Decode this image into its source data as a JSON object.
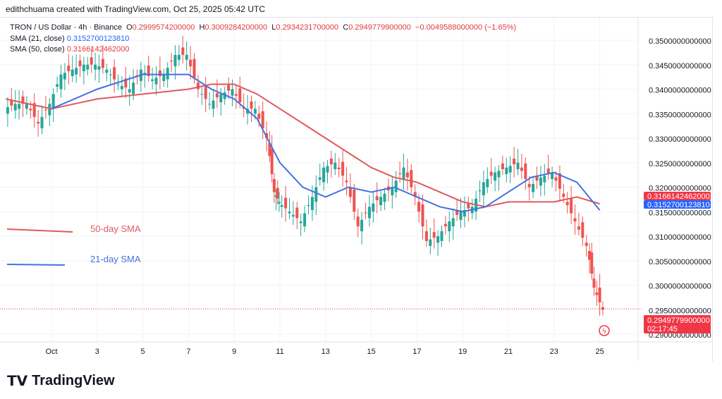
{
  "credit": "edithchuama created with TradingView.com, Oct 25, 2025 05:42 UTC",
  "legend": {
    "symbol": "TRON / US Dollar · 4h · Binance",
    "o_label": "O",
    "o": "0.2999574200000",
    "h_label": "H",
    "h": "0.3009284200000",
    "l_label": "L",
    "l": "0.2934231700000",
    "c_label": "C",
    "c": "0.2949779900000",
    "change": "−0.0049588000000 (−1.65%)",
    "sma21_label": "SMA (21, close)",
    "sma21": "0.3152700123810",
    "sma50_label": "SMA (50, close)",
    "sma50": "0.3166142462000"
  },
  "annotations": {
    "sma50": "50-day SMA",
    "sma21": "21-day SMA"
  },
  "price_labels": {
    "sma50": "0.3166142462000",
    "sma21": "0.3152700123810",
    "last": "0.2949779900000",
    "countdown": "02:17:45"
  },
  "logo": "TradingView",
  "colors": {
    "up": "#26a69a",
    "down": "#ef5350",
    "sma21": "#4472dd",
    "sma50": "#e05a5e"
  },
  "chart_data": {
    "type": "candlestick",
    "ylim": [
      0.288,
      0.352
    ],
    "y_ticks": [
      "0.350000000000",
      "0.345000000000",
      "0.340000000000",
      "0.335000000000",
      "0.330000000000",
      "0.325000000000",
      "0.320000000000",
      "0.315000000000",
      "0.310000000000",
      "0.305000000000",
      "0.300000000000",
      "0.295000000000",
      "0.290000000000"
    ],
    "y_tick_values": [
      0.35,
      0.345,
      0.34,
      0.335,
      0.33,
      0.325,
      0.32,
      0.315,
      0.31,
      0.305,
      0.3,
      0.295,
      0.29
    ],
    "x_ticks": [
      {
        "label": "Oct",
        "day": 1
      },
      {
        "label": "3",
        "day": 3
      },
      {
        "label": "5",
        "day": 5
      },
      {
        "label": "7",
        "day": 7
      },
      {
        "label": "9",
        "day": 9
      },
      {
        "label": "11",
        "day": 11
      },
      {
        "label": "13",
        "day": 13
      },
      {
        "label": "15",
        "day": 15
      },
      {
        "label": "17",
        "day": 17
      },
      {
        "label": "19",
        "day": 19
      },
      {
        "label": "21",
        "day": 21
      },
      {
        "label": "23",
        "day": 23
      },
      {
        "label": "25",
        "day": 25
      }
    ],
    "close_day": [
      -1,
      -0.5,
      0,
      0.5,
      1,
      1.5,
      2,
      2.5,
      3,
      3.5,
      4,
      4.5,
      5,
      5.5,
      6,
      6.5,
      7,
      7.5,
      8,
      8.5,
      9,
      9.5,
      10,
      10.5,
      10.8,
      11,
      11.5,
      12,
      12.5,
      13,
      13.5,
      14,
      14.5,
      15,
      15.5,
      16,
      16.5,
      17,
      17.5,
      18,
      18.5,
      19,
      19.5,
      20,
      20.5,
      21,
      21.5,
      22,
      22.5,
      23,
      23.5,
      24,
      24.5,
      24.8,
      25.2
    ],
    "close": [
      0.336,
      0.337,
      0.337,
      0.333,
      0.337,
      0.343,
      0.344,
      0.345,
      0.345,
      0.344,
      0.341,
      0.34,
      0.344,
      0.342,
      0.343,
      0.347,
      0.347,
      0.34,
      0.337,
      0.339,
      0.34,
      0.336,
      0.336,
      0.33,
      0.319,
      0.317,
      0.315,
      0.313,
      0.318,
      0.324,
      0.325,
      0.321,
      0.312,
      0.316,
      0.318,
      0.32,
      0.324,
      0.318,
      0.309,
      0.31,
      0.313,
      0.315,
      0.316,
      0.321,
      0.323,
      0.324,
      0.325,
      0.32,
      0.322,
      0.323,
      0.318,
      0.313,
      0.308,
      0.2995,
      0.295
    ],
    "sma21": {
      "day": [
        1,
        3,
        5,
        7,
        8,
        9,
        10,
        11,
        12,
        13,
        14,
        15,
        16,
        17,
        18,
        19,
        20,
        21,
        22,
        23,
        24,
        25
      ],
      "value": [
        0.336,
        0.34,
        0.343,
        0.343,
        0.34,
        0.338,
        0.334,
        0.325,
        0.32,
        0.318,
        0.32,
        0.319,
        0.32,
        0.318,
        0.316,
        0.315,
        0.316,
        0.319,
        0.322,
        0.323,
        0.321,
        0.3153
      ]
    },
    "sma50": {
      "day": [
        -1,
        0,
        1,
        3,
        5,
        7,
        8,
        9,
        10,
        11,
        12,
        13,
        14,
        15,
        16,
        17,
        18,
        19,
        20,
        21,
        22,
        23,
        24,
        25
      ],
      "value": [
        0.338,
        0.337,
        0.336,
        0.338,
        0.339,
        0.34,
        0.341,
        0.341,
        0.339,
        0.336,
        0.333,
        0.33,
        0.327,
        0.324,
        0.322,
        0.321,
        0.319,
        0.317,
        0.316,
        0.317,
        0.317,
        0.317,
        0.318,
        0.3166
      ]
    }
  }
}
